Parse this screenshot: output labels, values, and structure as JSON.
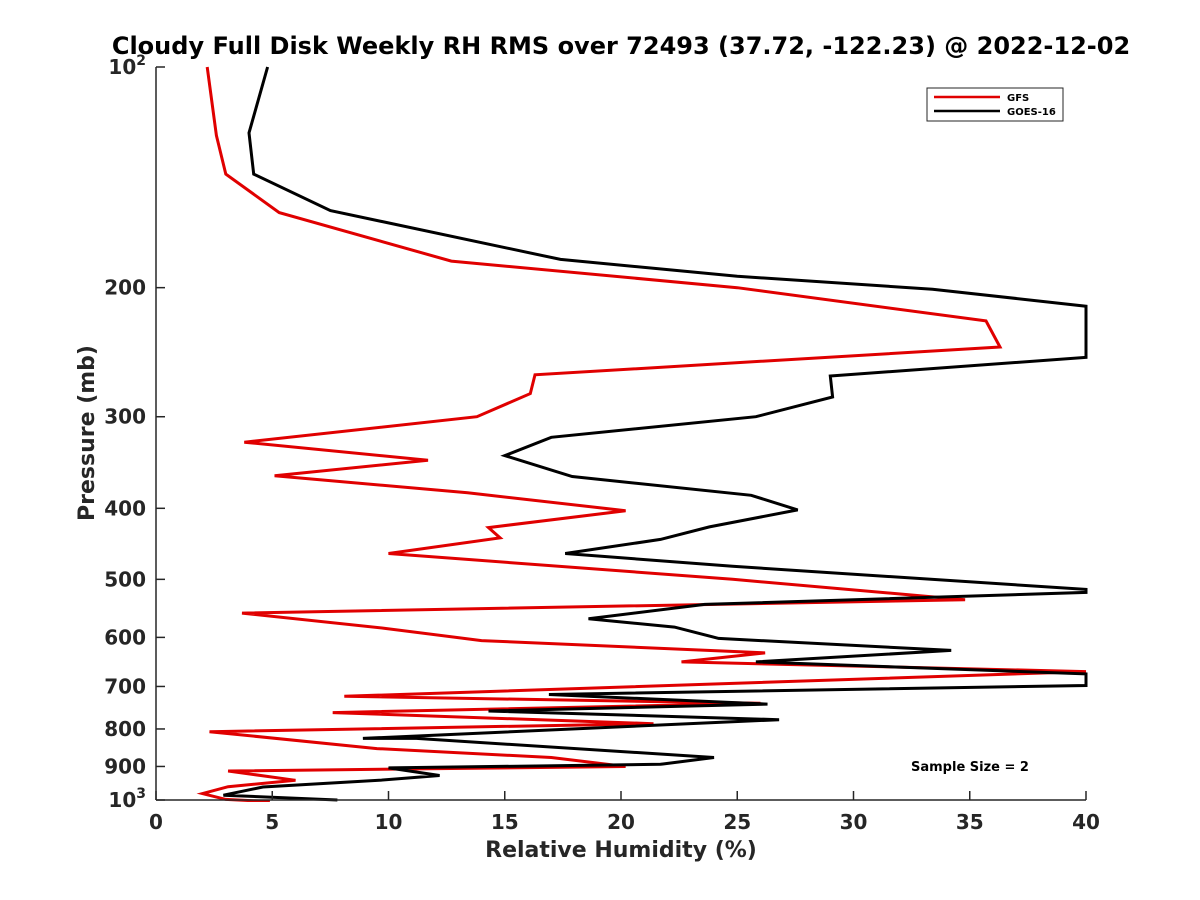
{
  "chart_data": {
    "type": "line",
    "title": "Cloudy Full Disk Weekly RH RMS over 72493 (37.72, -122.23) @ 2022-12-02",
    "xlabel": "Relative Humidity (%)",
    "ylabel": "Pressure (mb)",
    "xlim": [
      0,
      40
    ],
    "ylim": [
      100,
      1000
    ],
    "yscale": "log",
    "y_reversed": true,
    "x_ticks": [
      "0",
      "5",
      "10",
      "15",
      "20",
      "25",
      "30",
      "35",
      "40"
    ],
    "y_ticks": [
      {
        "value": 100,
        "label": "10",
        "sup": "2"
      },
      {
        "value": 200,
        "label": "200",
        "sup": ""
      },
      {
        "value": 300,
        "label": "300",
        "sup": ""
      },
      {
        "value": 400,
        "label": "400",
        "sup": ""
      },
      {
        "value": 500,
        "label": "500",
        "sup": ""
      },
      {
        "value": 600,
        "label": "600",
        "sup": ""
      },
      {
        "value": 700,
        "label": "700",
        "sup": ""
      },
      {
        "value": 800,
        "label": "800",
        "sup": ""
      },
      {
        "value": 900,
        "label": "900",
        "sup": ""
      },
      {
        "value": 1000,
        "label": "10",
        "sup": "3"
      }
    ],
    "legend_position": "top-right",
    "annotation": "Sample Size = 2",
    "series": [
      {
        "name": "GFS",
        "color": "#e00000",
        "points": [
          [
            2.2,
            100
          ],
          [
            2.6,
            124
          ],
          [
            3.0,
            140
          ],
          [
            5.3,
            158
          ],
          [
            12.7,
            184
          ],
          [
            25.0,
            200
          ],
          [
            35.7,
            222
          ],
          [
            36.3,
            241
          ],
          [
            16.3,
            263
          ],
          [
            16.1,
            279
          ],
          [
            13.8,
            300
          ],
          [
            3.8,
            325
          ],
          [
            11.7,
            344
          ],
          [
            5.1,
            361
          ],
          [
            13.4,
            381
          ],
          [
            20.2,
            403
          ],
          [
            14.3,
            425
          ],
          [
            14.8,
            439
          ],
          [
            10.0,
            461
          ],
          [
            24.8,
            500
          ],
          [
            34.8,
            533
          ],
          [
            3.7,
            556
          ],
          [
            9.8,
            583
          ],
          [
            14.0,
            606
          ],
          [
            26.2,
            630
          ],
          [
            22.6,
            648
          ],
          [
            40.0,
            668
          ],
          [
            8.1,
            722
          ],
          [
            26.0,
            738
          ],
          [
            7.6,
            760
          ],
          [
            21.4,
            787
          ],
          [
            2.3,
            807
          ],
          [
            9.5,
            851
          ],
          [
            17.0,
            875
          ],
          [
            20.2,
            900
          ],
          [
            3.1,
            913
          ],
          [
            6.0,
            940
          ],
          [
            3.1,
            959
          ],
          [
            2.0,
            980
          ],
          [
            3.0,
            998
          ],
          [
            4.9,
            1005
          ]
        ]
      },
      {
        "name": "GOES-16",
        "color": "#000000",
        "points": [
          [
            4.8,
            100
          ],
          [
            4.0,
            123
          ],
          [
            4.2,
            140
          ],
          [
            7.5,
            157
          ],
          [
            17.4,
            183
          ],
          [
            25.0,
            193
          ],
          [
            33.4,
            201
          ],
          [
            40.0,
            212
          ],
          [
            40.0,
            249
          ],
          [
            29.0,
            264
          ],
          [
            29.1,
            282
          ],
          [
            25.8,
            300
          ],
          [
            17.0,
            320
          ],
          [
            15.0,
            339
          ],
          [
            17.9,
            362
          ],
          [
            25.6,
            384
          ],
          [
            27.6,
            402
          ],
          [
            23.8,
            424
          ],
          [
            21.7,
            441
          ],
          [
            17.6,
            461
          ],
          [
            24.8,
            480
          ],
          [
            40.0,
            516
          ],
          [
            40.0,
            521
          ],
          [
            23.6,
            541
          ],
          [
            18.6,
            566
          ],
          [
            22.3,
            581
          ],
          [
            24.2,
            602
          ],
          [
            34.2,
            625
          ],
          [
            25.8,
            648
          ],
          [
            40.0,
            673
          ],
          [
            40.0,
            698
          ],
          [
            16.9,
            718
          ],
          [
            26.3,
            740
          ],
          [
            14.3,
            756
          ],
          [
            26.8,
            777
          ],
          [
            8.9,
            824
          ],
          [
            11.2,
            824
          ],
          [
            24.0,
            875
          ],
          [
            21.8,
            893
          ],
          [
            21.7,
            894
          ],
          [
            10.0,
            904
          ],
          [
            12.2,
            926
          ],
          [
            9.6,
            940
          ],
          [
            4.6,
            960
          ],
          [
            2.9,
            985
          ],
          [
            7.8,
            1000
          ]
        ]
      }
    ]
  }
}
